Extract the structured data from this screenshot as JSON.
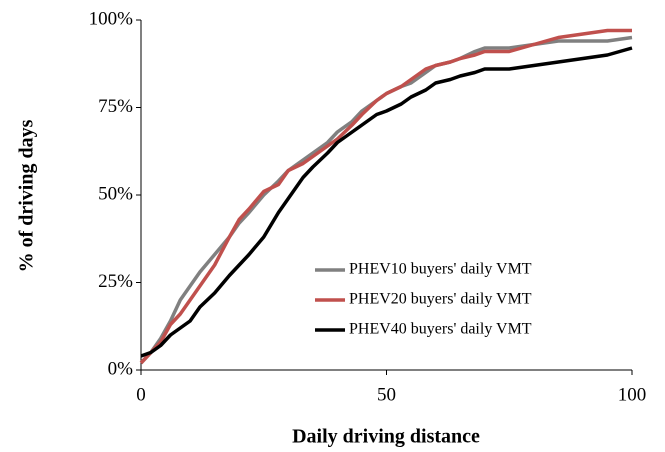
{
  "chart_data": {
    "type": "line",
    "xlabel": "Daily driving distance",
    "ylabel": "% of driving days",
    "x": [
      0,
      2,
      4,
      6,
      8,
      10,
      12,
      15,
      18,
      20,
      22,
      25,
      28,
      30,
      33,
      35,
      38,
      40,
      43,
      45,
      48,
      50,
      53,
      55,
      58,
      60,
      63,
      65,
      68,
      70,
      75,
      80,
      85,
      90,
      95,
      100
    ],
    "series": [
      {
        "name": "PHEV10 buyers' daily VMT",
        "color": "#808080",
        "values": [
          2,
          5,
          9,
          14,
          20,
          24,
          28,
          33,
          38,
          42,
          45,
          50,
          54,
          57,
          60,
          62,
          65,
          68,
          71,
          74,
          77,
          79,
          81,
          82,
          85,
          87,
          88,
          89,
          91,
          92,
          92,
          93,
          94,
          94,
          94,
          95
        ]
      },
      {
        "name": "PHEV20 buyers' daily VMT",
        "color": "#c0504d",
        "values": [
          2,
          5,
          8,
          13,
          16,
          20,
          24,
          30,
          38,
          43,
          46,
          51,
          53,
          57,
          59,
          61,
          64,
          66,
          70,
          73,
          77,
          79,
          81,
          83,
          86,
          87,
          88,
          89,
          90,
          91,
          91,
          93,
          95,
          96,
          97,
          97
        ]
      },
      {
        "name": "PHEV40 buyers' daily VMT",
        "color": "#000000",
        "values": [
          4,
          5,
          7,
          10,
          12,
          14,
          18,
          22,
          27,
          30,
          33,
          38,
          45,
          49,
          55,
          58,
          62,
          65,
          68,
          70,
          73,
          74,
          76,
          78,
          80,
          82,
          83,
          84,
          85,
          86,
          86,
          87,
          88,
          89,
          90,
          92
        ]
      }
    ],
    "xlim": [
      0,
      100
    ],
    "xticks": [
      0,
      50,
      100
    ],
    "ylim": [
      0,
      100
    ],
    "yticks": [
      {
        "value": 0,
        "label": "0%"
      },
      {
        "value": 25,
        "label": "25%"
      },
      {
        "value": 50,
        "label": "50%"
      },
      {
        "value": 75,
        "label": "75%"
      },
      {
        "value": 100,
        "label": "100%"
      }
    ],
    "legend": "lower right"
  }
}
